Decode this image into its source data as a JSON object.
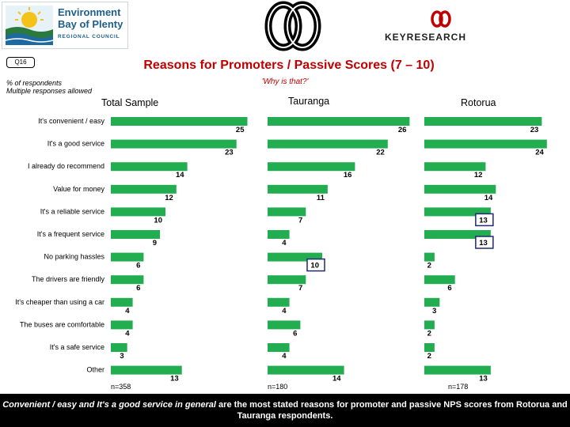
{
  "logos": {
    "left_name_line1": "Environment",
    "left_name_line2": "Bay of Plenty",
    "left_name_line3": "REGIONAL COUNCIL",
    "right_name": "KEYRESEARCH"
  },
  "header": {
    "question_code": "Q16",
    "title": "Reasons for Promoters / Passive Scores (7 – 10)",
    "subquestion": "'Why is that?'",
    "note_line1": "% of respondents",
    "note_line2": "Multiple responses allowed"
  },
  "chart_data": {
    "type": "bar",
    "orientation": "horizontal",
    "categories": [
      "It's convenient / easy",
      "It's a good service",
      "I already do recommend",
      "Value for money",
      "It's a reliable service",
      "It's a frequent service",
      "No parking hassles",
      "The drivers are friendly",
      "It's cheaper than using a car",
      "The buses are comfortable",
      "It's a safe service",
      "Other"
    ],
    "series": [
      {
        "name": "Total Sample",
        "values": [
          25,
          23,
          14,
          12,
          10,
          9,
          6,
          6,
          4,
          4,
          3,
          13
        ],
        "n": "n=358"
      },
      {
        "name": "Tauranga",
        "values": [
          26,
          22,
          16,
          11,
          7,
          4,
          10,
          7,
          4,
          6,
          4,
          14
        ],
        "n": "n=180",
        "highlighted": [
          6
        ]
      },
      {
        "name": "Rotorua",
        "values": [
          23,
          24,
          12,
          14,
          13,
          13,
          2,
          6,
          3,
          2,
          2,
          13
        ],
        "n": "n=178",
        "highlighted": [
          4,
          5
        ]
      }
    ],
    "colors": {
      "bar": "#22ad50",
      "highlight_box": "#1f2a6e"
    }
  },
  "footer": {
    "text_italic_part": "Convenient / easy and It's a good service in general",
    "text_rest": " are the most stated reasons for promoter and passive NPS scores from Rotorua and Tauranga respondents."
  }
}
